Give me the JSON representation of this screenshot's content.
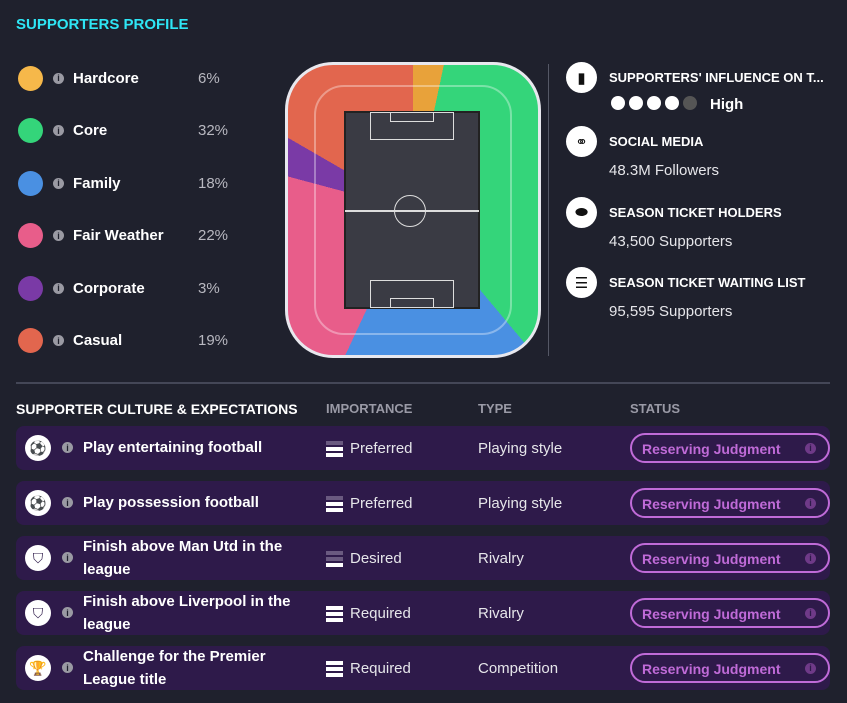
{
  "title": "SUPPORTERS PROFILE",
  "segments": [
    {
      "label": "Hardcore",
      "pct": "6%",
      "color": "#f6b84a"
    },
    {
      "label": "Core",
      "pct": "32%",
      "color": "#34d57a"
    },
    {
      "label": "Family",
      "pct": "18%",
      "color": "#4a90e2"
    },
    {
      "label": "Fair Weather",
      "pct": "22%",
      "color": "#e85d8a"
    },
    {
      "label": "Corporate",
      "pct": "3%",
      "color": "#7a3aa6"
    },
    {
      "label": "Casual",
      "pct": "19%",
      "color": "#e2664e"
    }
  ],
  "stats": {
    "influence": {
      "label": "SUPPORTERS' INFLUENCE ON T...",
      "value": "High",
      "level": 4,
      "max": 5
    },
    "social": {
      "label": "SOCIAL MEDIA",
      "value": "48.3M Followers"
    },
    "holders": {
      "label": "SEASON TICKET HOLDERS",
      "value": "43,500 Supporters"
    },
    "waiting": {
      "label": "SEASON TICKET WAITING LIST",
      "value": "95,595 Supporters"
    }
  },
  "culture": {
    "headers": {
      "title": "SUPPORTER CULTURE & EXPECTATIONS",
      "importance": "IMPORTANCE",
      "type": "TYPE",
      "status": "STATUS"
    },
    "rows": [
      {
        "name": "Play entertaining football",
        "importance": "Preferred",
        "level": 2,
        "type": "Playing style",
        "status": "Reserving Judgment",
        "icon": "football-icon"
      },
      {
        "name": "Play possession football",
        "importance": "Preferred",
        "level": 2,
        "type": "Playing style",
        "status": "Reserving Judgment",
        "icon": "football-icon"
      },
      {
        "name": "Finish above Man Utd in the league",
        "importance": "Desired",
        "level": 1,
        "type": "Rivalry",
        "status": "Reserving Judgment",
        "icon": "shield-icon"
      },
      {
        "name": "Finish above Liverpool in the league",
        "importance": "Required",
        "level": 3,
        "type": "Rivalry",
        "status": "Reserving Judgment",
        "icon": "shield-icon"
      },
      {
        "name": "Challenge for the Premier League title",
        "importance": "Required",
        "level": 3,
        "type": "Competition",
        "status": "Reserving Judgment",
        "icon": "trophy-icon"
      }
    ]
  }
}
